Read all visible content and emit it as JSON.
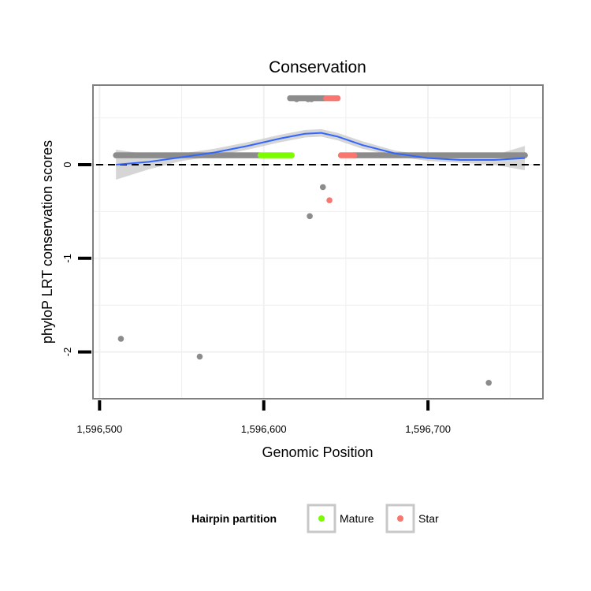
{
  "chart_data": {
    "type": "scatter",
    "title": "Conservation",
    "xlabel": "Genomic Position",
    "ylabel": "phyloP LRT conservation scores",
    "xlim": [
      1596496,
      1596770
    ],
    "ylim": [
      -2.5,
      0.85
    ],
    "x_ticks": [
      {
        "value": 1596500,
        "label": "1,596,500"
      },
      {
        "value": 1596600,
        "label": "1,596,600"
      },
      {
        "value": 1596700,
        "label": "1,596,700"
      }
    ],
    "y_ticks": [
      {
        "value": 0,
        "label": "0"
      },
      {
        "value": -1,
        "label": "-1"
      },
      {
        "value": -2,
        "label": "-2"
      }
    ],
    "grid": true,
    "reference_line": {
      "y": 0,
      "style": "dashed"
    },
    "legend": {
      "title": "Hairpin partition",
      "position": "bottom",
      "entries": [
        {
          "label": "Mature",
          "color": "#7CFC00"
        },
        {
          "label": "Star",
          "color": "#F8766D"
        }
      ]
    },
    "colors": {
      "other": "#8c8c8c",
      "mature": "#7CFC00",
      "star": "#F8766D",
      "smooth": "#3366FF",
      "ribbon": "#c8c8c8"
    },
    "series": [
      {
        "name": "Other",
        "segments": [
          {
            "x_start": 1596510,
            "x_end": 1596597,
            "y": 0.1
          },
          {
            "x_start": 1596655,
            "x_end": 1596759,
            "y": 0.1
          },
          {
            "x_start": 1596616,
            "x_end": 1596637,
            "y": 0.71
          }
        ],
        "points": [
          {
            "x": 1596620,
            "y": 0.7
          },
          {
            "x": 1596627,
            "y": 0.7
          },
          {
            "x": 1596629,
            "y": 0.7
          },
          {
            "x": 1596636,
            "y": -0.24
          },
          {
            "x": 1596628,
            "y": -0.55
          },
          {
            "x": 1596513,
            "y": -1.86
          },
          {
            "x": 1596561,
            "y": -2.05
          },
          {
            "x": 1596737,
            "y": -2.33
          }
        ]
      },
      {
        "name": "Mature",
        "segments": [
          {
            "x_start": 1596598,
            "x_end": 1596617,
            "y": 0.1
          }
        ],
        "points": []
      },
      {
        "name": "Star",
        "segments": [
          {
            "x_start": 1596647,
            "x_end": 1596655,
            "y": 0.1
          },
          {
            "x_start": 1596638,
            "x_end": 1596645,
            "y": 0.71
          }
        ],
        "points": [
          {
            "x": 1596640,
            "y": -0.38
          }
        ]
      }
    ],
    "smooth": {
      "x": [
        1596510,
        1596530,
        1596550,
        1596570,
        1596590,
        1596610,
        1596625,
        1596635,
        1596645,
        1596660,
        1596680,
        1596700,
        1596720,
        1596740,
        1596759
      ],
      "y": [
        0.0,
        0.03,
        0.08,
        0.13,
        0.2,
        0.28,
        0.33,
        0.34,
        0.3,
        0.21,
        0.12,
        0.07,
        0.05,
        0.05,
        0.07
      ],
      "ci_lower": [
        -0.16,
        -0.05,
        0.04,
        0.09,
        0.16,
        0.24,
        0.29,
        0.3,
        0.26,
        0.17,
        0.09,
        0.04,
        0.02,
        0.0,
        -0.06
      ],
      "ci_upper": [
        0.16,
        0.11,
        0.12,
        0.17,
        0.24,
        0.32,
        0.37,
        0.38,
        0.34,
        0.25,
        0.15,
        0.1,
        0.08,
        0.1,
        0.2
      ]
    }
  }
}
